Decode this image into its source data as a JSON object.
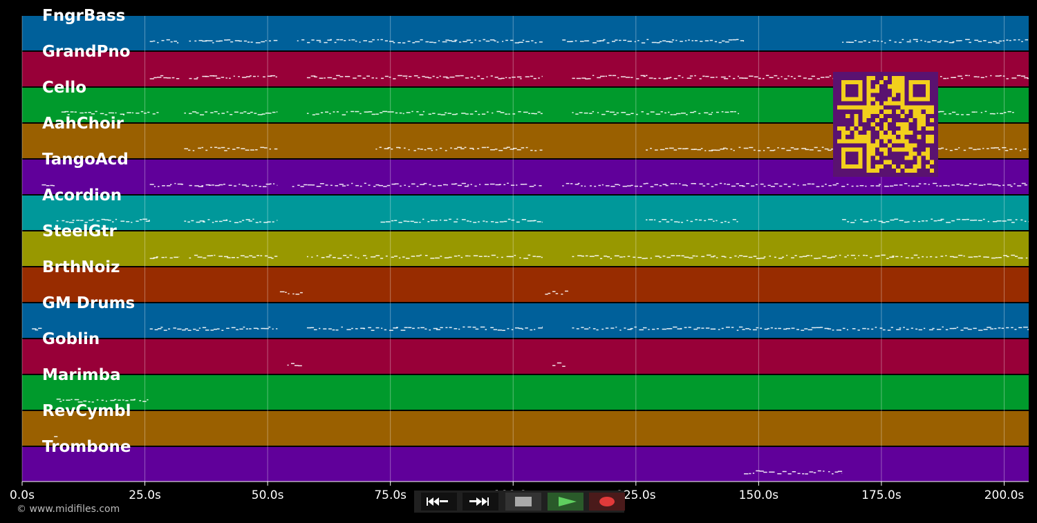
{
  "tracks": [
    {
      "name": "FngrBass",
      "color": "#00609a"
    },
    {
      "name": "GrandPno",
      "color": "#980038"
    },
    {
      "name": "Cello",
      "color": "#009a2c"
    },
    {
      "name": "AahChoir",
      "color": "#9a6000"
    },
    {
      "name": "TangoAcd",
      "color": "#60009a"
    },
    {
      "name": "Acordion",
      "color": "#00989a"
    },
    {
      "name": "SteelGtr",
      "color": "#989800"
    },
    {
      "name": "BrthNoiz",
      "color": "#982c00"
    },
    {
      "name": "GM Drums",
      "color": "#00609a"
    },
    {
      "name": "Goblin",
      "color": "#980038"
    },
    {
      "name": "Marimba",
      "color": "#009a2c"
    },
    {
      "name": "RevCymbl",
      "color": "#9a6000"
    },
    {
      "name": "Trombone",
      "color": "#60009a"
    }
  ],
  "time_axis": {
    "min_seconds": 0,
    "max_seconds": 205,
    "ticks": [
      {
        "t": 0,
        "label": "0.0s"
      },
      {
        "t": 25,
        "label": "25.0s"
      },
      {
        "t": 50,
        "label": "50.0s"
      },
      {
        "t": 75,
        "label": "75.0s"
      },
      {
        "t": 100,
        "label": "100.0s"
      },
      {
        "t": 125,
        "label": "125.0s"
      },
      {
        "t": 150,
        "label": "150.0s"
      },
      {
        "t": 175,
        "label": "175.0s"
      },
      {
        "t": 200,
        "label": "200.0s"
      }
    ]
  },
  "note_segments": [
    [
      [
        26,
        32
      ],
      [
        34,
        52
      ],
      [
        56,
        64
      ],
      [
        64,
        80
      ],
      [
        80,
        106
      ],
      [
        110,
        135
      ],
      [
        135,
        147
      ],
      [
        167,
        205
      ]
    ],
    [
      [
        26,
        32
      ],
      [
        34,
        52
      ],
      [
        58,
        72
      ],
      [
        72,
        106
      ],
      [
        112,
        127
      ],
      [
        127,
        146
      ],
      [
        146,
        205
      ]
    ],
    [
      [
        8,
        28
      ],
      [
        33,
        52
      ],
      [
        58,
        72
      ],
      [
        72,
        106
      ],
      [
        112,
        132
      ],
      [
        132,
        146
      ],
      [
        186,
        202
      ]
    ],
    [
      [
        33,
        52
      ],
      [
        72,
        106
      ],
      [
        127,
        205
      ]
    ],
    [
      [
        4,
        7
      ],
      [
        26,
        33
      ],
      [
        34,
        52
      ],
      [
        55,
        72
      ],
      [
        72,
        106
      ],
      [
        110,
        127
      ],
      [
        127,
        146
      ],
      [
        146,
        205
      ]
    ],
    [
      [
        7,
        26
      ],
      [
        33,
        52
      ],
      [
        73,
        106
      ],
      [
        127,
        146
      ],
      [
        167,
        205
      ]
    ],
    [
      [
        26,
        32
      ],
      [
        34,
        52
      ],
      [
        58,
        72
      ],
      [
        72,
        106
      ],
      [
        112,
        127
      ],
      [
        127,
        146
      ],
      [
        146,
        205
      ]
    ],
    [
      [
        52.5,
        57.5
      ],
      [
        106.5,
        111.5
      ]
    ],
    [
      [
        2,
        4
      ],
      [
        26,
        52
      ],
      [
        58,
        106
      ],
      [
        112,
        146
      ],
      [
        146,
        205
      ]
    ],
    [
      [
        54,
        57
      ],
      [
        108,
        111
      ]
    ],
    [
      [
        7,
        26
      ]
    ],
    [
      [
        6.5,
        7.5
      ]
    ],
    [
      [
        147,
        167
      ]
    ]
  ],
  "qr": {
    "color_fg": "#5a1270",
    "color_bg": "#f2cf1c"
  },
  "transport": {
    "rewind": "rewind-icon",
    "fast_forward": "fast-forward-icon",
    "stop": "stop-icon",
    "play": "play-icon",
    "record": "record-icon"
  },
  "credit": "© www.midifiles.com"
}
